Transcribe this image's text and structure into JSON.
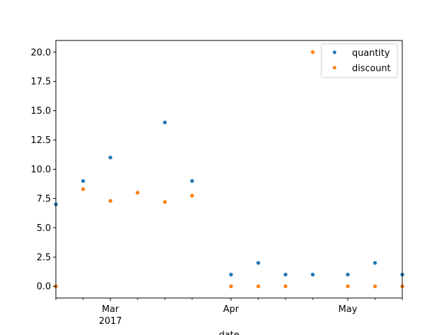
{
  "chart_data": {
    "type": "scatter",
    "xlabel": "date",
    "x": [
      "2017-02-15",
      "2017-02-22",
      "2017-03-01",
      "2017-03-08",
      "2017-03-15",
      "2017-03-22",
      "2017-03-29",
      "2017-04-05",
      "2017-04-12",
      "2017-04-19",
      "2017-04-26",
      "2017-05-03",
      "2017-05-10",
      "2017-05-17"
    ],
    "x_ticks_major": [
      {
        "date": "2017-03-01",
        "label": "Mar",
        "sublabel": "2017"
      },
      {
        "date": "2017-04-01",
        "label": "Apr",
        "sublabel": ""
      },
      {
        "date": "2017-05-01",
        "label": "May",
        "sublabel": ""
      }
    ],
    "x_ticks_minor": [
      "2017-02-15",
      "2017-02-22",
      "2017-03-08",
      "2017-03-15",
      "2017-03-22",
      "2017-04-08",
      "2017-04-15",
      "2017-04-22",
      "2017-05-08",
      "2017-05-15"
    ],
    "xlim": [
      "2017-02-15",
      "2017-05-15"
    ],
    "ylim": [
      -1,
      21
    ],
    "yticks": [
      0.0,
      2.5,
      5.0,
      7.5,
      10.0,
      12.5,
      15.0,
      17.5,
      20.0
    ],
    "ytick_labels": [
      "0.0",
      "2.5",
      "5.0",
      "7.5",
      "10.0",
      "12.5",
      "15.0",
      "17.5",
      "20.0"
    ],
    "series": [
      {
        "name": "quantity",
        "color": "#1f77b4",
        "points": [
          {
            "x": "2017-02-15",
            "y": 7
          },
          {
            "x": "2017-02-22",
            "y": 9
          },
          {
            "x": "2017-03-01",
            "y": 11
          },
          {
            "x": "2017-03-15",
            "y": 14
          },
          {
            "x": "2017-03-22",
            "y": 9
          },
          {
            "x": "2017-04-01",
            "y": 1
          },
          {
            "x": "2017-04-08",
            "y": 2
          },
          {
            "x": "2017-04-15",
            "y": 1
          },
          {
            "x": "2017-04-22",
            "y": 1
          },
          {
            "x": "2017-05-01",
            "y": 1
          },
          {
            "x": "2017-05-08",
            "y": 2
          },
          {
            "x": "2017-05-15",
            "y": 1
          }
        ]
      },
      {
        "name": "discount",
        "color": "#ff7f0e",
        "points": [
          {
            "x": "2017-02-15",
            "y": 0
          },
          {
            "x": "2017-02-22",
            "y": 8.3
          },
          {
            "x": "2017-03-01",
            "y": 7.3
          },
          {
            "x": "2017-03-08",
            "y": 8.0
          },
          {
            "x": "2017-03-15",
            "y": 7.2
          },
          {
            "x": "2017-03-22",
            "y": 7.75
          },
          {
            "x": "2017-04-01",
            "y": 0
          },
          {
            "x": "2017-04-08",
            "y": 0
          },
          {
            "x": "2017-04-15",
            "y": 0
          },
          {
            "x": "2017-04-22",
            "y": 20
          },
          {
            "x": "2017-05-01",
            "y": 0
          },
          {
            "x": "2017-05-08",
            "y": 0
          },
          {
            "x": "2017-05-15",
            "y": 0
          }
        ]
      }
    ],
    "legend": {
      "position": "upper right",
      "entries": [
        "quantity",
        "discount"
      ]
    },
    "grid": false
  }
}
